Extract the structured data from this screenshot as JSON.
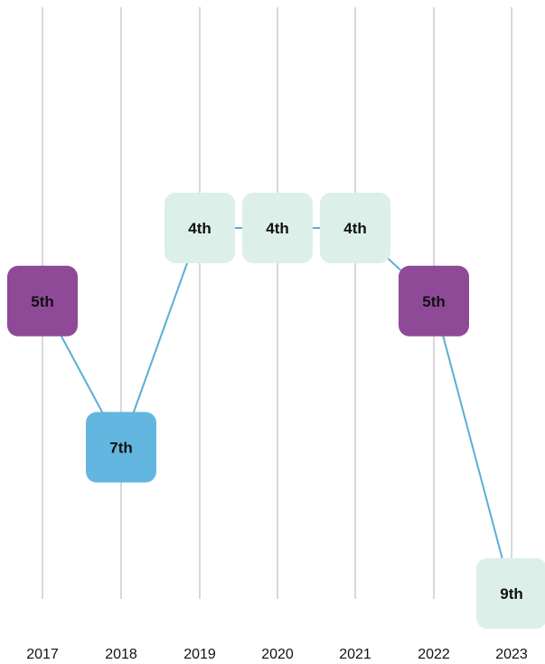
{
  "chart_data": {
    "type": "line",
    "x": [
      "2017",
      "2018",
      "2019",
      "2020",
      "2021",
      "2022",
      "2023"
    ],
    "values": [
      5,
      7,
      4,
      4,
      4,
      5,
      9
    ],
    "labels": [
      "5th",
      "7th",
      "4th",
      "4th",
      "4th",
      "5th",
      "9th"
    ],
    "y_axis": "rank",
    "y_inverted": true,
    "ylim": [
      3,
      10
    ],
    "grid": "vertical lines at each year",
    "colors": {
      "line": "#5aaed6",
      "grid": "#d8d8d8",
      "rank_4": "#dcefe9",
      "rank_5": "#8f4a97",
      "rank_7": "#63b6df",
      "rank_9": "#dcefe9"
    }
  }
}
